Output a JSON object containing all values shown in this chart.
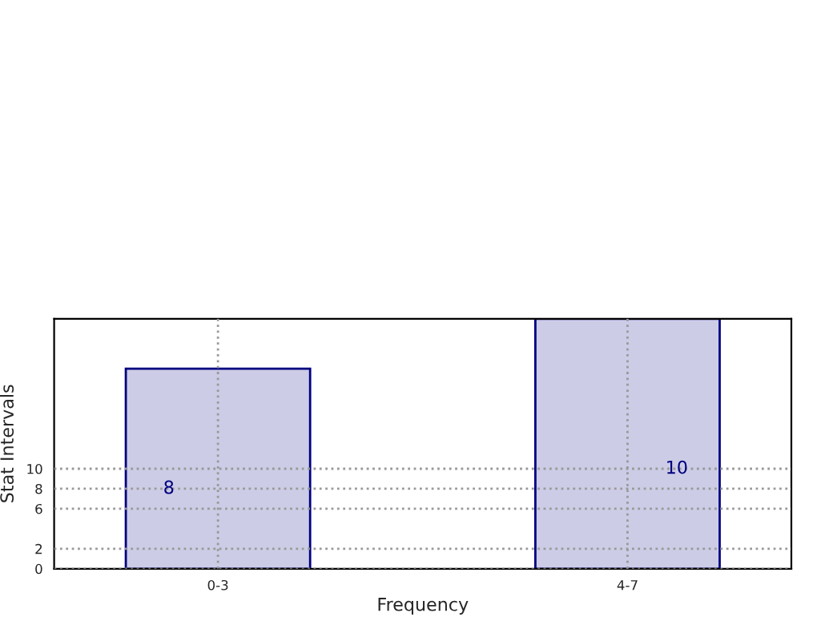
{
  "chart_data": {
    "type": "bar",
    "xlabel": "Frequency",
    "ylabel": "Stat Intervals",
    "categories": [
      "0-3",
      "4-7"
    ],
    "series": [
      {
        "color": "#cccce6",
        "values": [
          20,
          25
        ]
      }
    ],
    "ylim": [
      0,
      25
    ],
    "yticks": [
      0,
      2,
      6,
      8,
      10
    ],
    "annotations": [
      "8",
      "10"
    ],
    "grid": true
  }
}
